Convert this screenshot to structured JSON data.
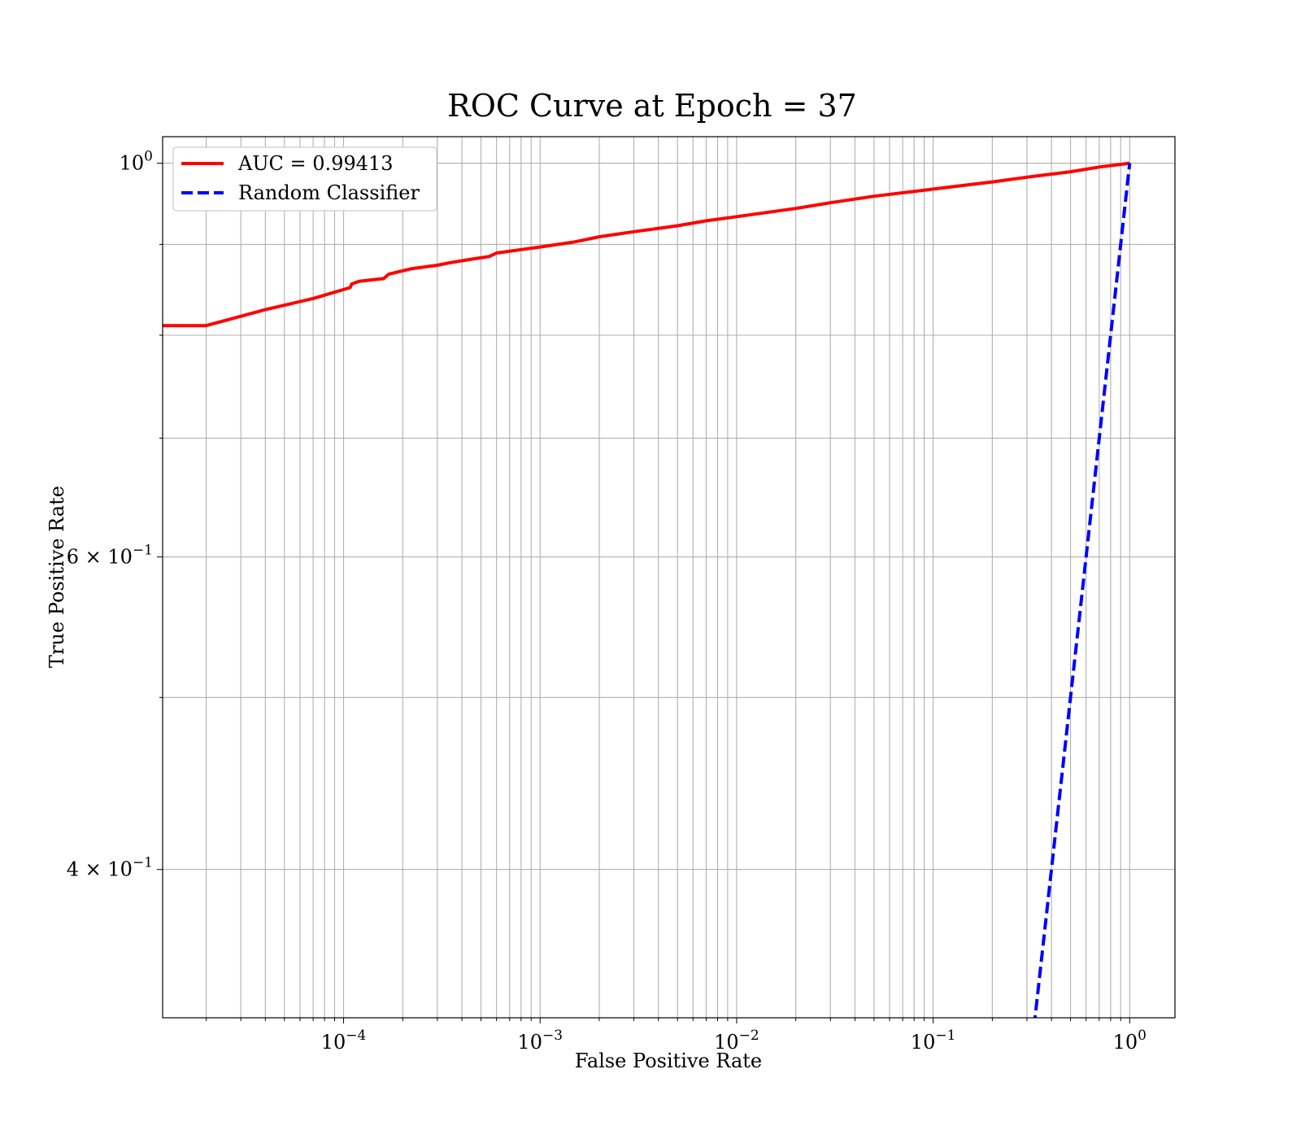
{
  "chart_data": {
    "type": "line",
    "title": "ROC Curve at Epoch = 37",
    "xlabel": "False Positive Rate",
    "ylabel": "True Positive Rate",
    "xscale": "log",
    "yscale": "log",
    "xlim": [
      1.2e-05,
      1.7
    ],
    "ylim": [
      0.33,
      1.035
    ],
    "grid": true,
    "grid_which": "both",
    "legend_position": "upper left",
    "x_major_ticks": [
      {
        "value": 0.0001,
        "base": "10",
        "exp": "−4"
      },
      {
        "value": 0.001,
        "base": "10",
        "exp": "−3"
      },
      {
        "value": 0.01,
        "base": "10",
        "exp": "−2"
      },
      {
        "value": 0.1,
        "base": "10",
        "exp": "−1"
      },
      {
        "value": 1,
        "base": "10",
        "exp": "0"
      }
    ],
    "y_ticks": [
      {
        "value": 1.0,
        "mantissa": "",
        "base": "10",
        "exp": "0"
      },
      {
        "value": 0.6,
        "mantissa": "6 × ",
        "base": "10",
        "exp": "−1"
      },
      {
        "value": 0.4,
        "mantissa": "4 × ",
        "base": "10",
        "exp": "−1"
      }
    ],
    "y_minor_grid": [
      0.9,
      0.8,
      0.7,
      0.5
    ],
    "series": [
      {
        "name": "AUC = 0.99413",
        "color": "#ff0000",
        "style": "solid",
        "x": [
          1.2e-05,
          1.2e-05,
          2e-05,
          4e-05,
          7e-05,
          0.000108,
          0.00011,
          0.00012,
          0.00016,
          0.00017,
          0.00022,
          0.0003,
          0.00035,
          0.00045,
          0.00055,
          0.0006,
          0.0008,
          0.001,
          0.0015,
          0.002,
          0.003,
          0.005,
          0.007,
          0.01,
          0.02,
          0.03,
          0.05,
          0.1,
          0.2,
          0.3,
          0.5,
          0.7,
          1.0
        ],
        "y": [
          0.81,
          0.81,
          0.81,
          0.827,
          0.839,
          0.851,
          0.855,
          0.858,
          0.861,
          0.866,
          0.872,
          0.876,
          0.879,
          0.883,
          0.886,
          0.89,
          0.894,
          0.897,
          0.903,
          0.909,
          0.915,
          0.922,
          0.928,
          0.933,
          0.943,
          0.95,
          0.958,
          0.967,
          0.976,
          0.982,
          0.989,
          0.995,
          1.0
        ]
      },
      {
        "name": "Random Classifier",
        "color": "#0000ff",
        "style": "dashed",
        "x": [
          0.3,
          0.4,
          0.6,
          0.8,
          1.0
        ],
        "y": [
          0.3,
          0.4,
          0.6,
          0.8,
          1.0
        ]
      }
    ]
  }
}
